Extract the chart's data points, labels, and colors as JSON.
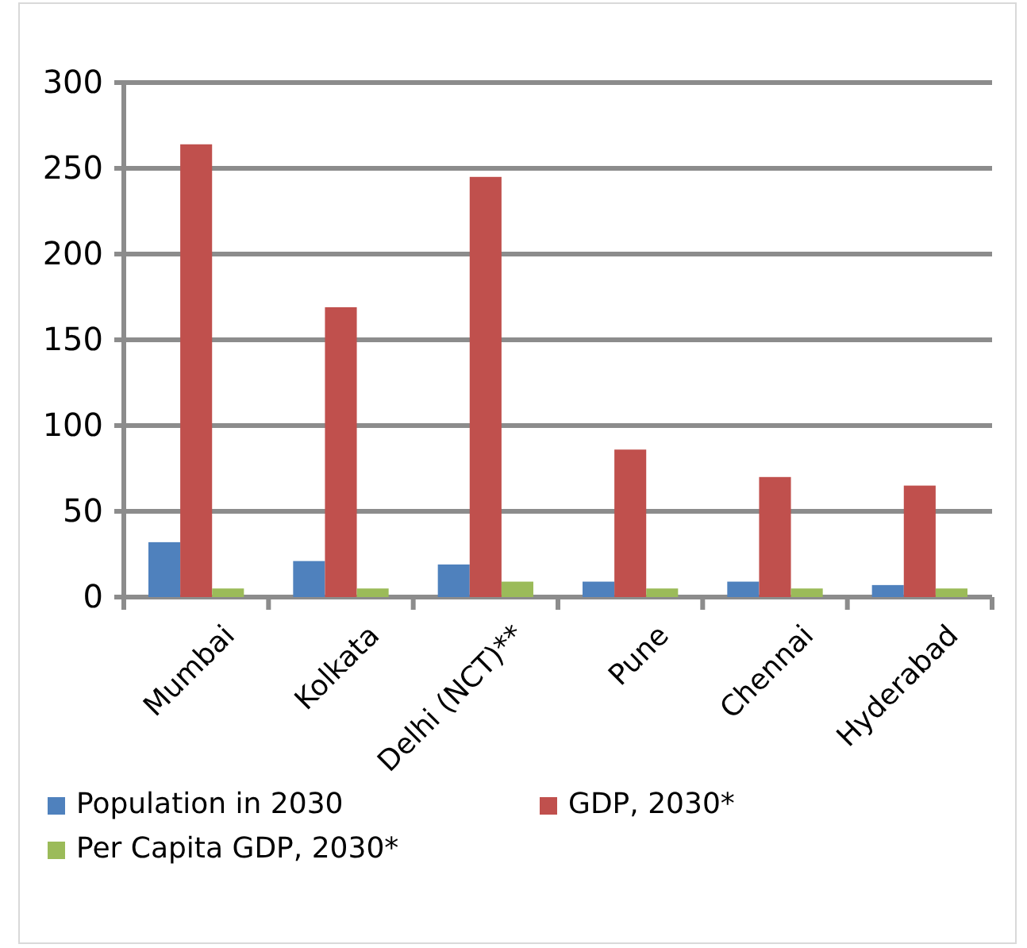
{
  "chart_data": {
    "type": "bar",
    "categories": [
      "Mumbai",
      "Kolkata",
      "Delhi (NCT)**",
      "Pune",
      "Chennai",
      "Hyderabad"
    ],
    "series": [
      {
        "name": "Population in 2030",
        "color": "#4f81bd",
        "values": [
          32,
          21,
          19,
          9,
          9,
          7
        ]
      },
      {
        "name": "GDP, 2030*",
        "color": "#c0504d",
        "values": [
          264,
          169,
          245,
          86,
          70,
          65
        ]
      },
      {
        "name": "Per Capita GDP, 2030*",
        "color": "#9bbb59",
        "values": [
          5,
          5,
          9,
          5,
          5,
          5
        ]
      }
    ],
    "ylim": [
      0,
      300
    ],
    "yticks": [
      0,
      50,
      100,
      150,
      200,
      250,
      300
    ],
    "grid": "y",
    "legend": "bottom"
  }
}
